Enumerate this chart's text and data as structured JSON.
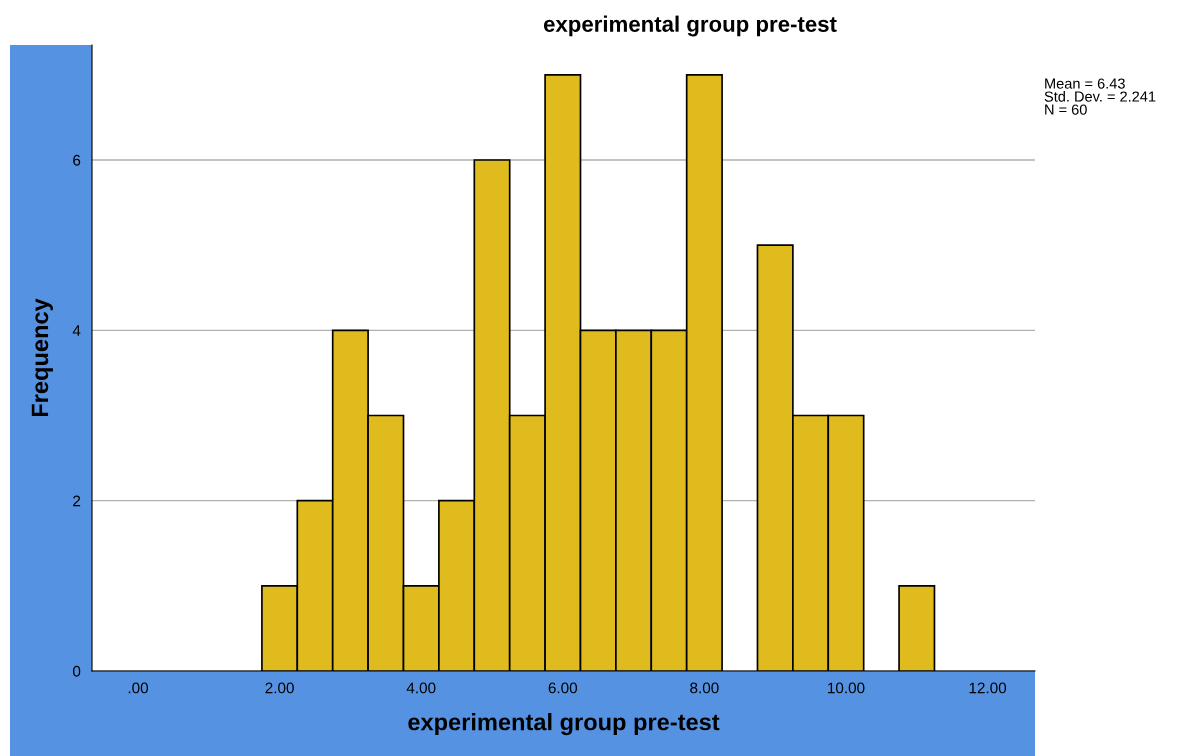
{
  "chart_data": {
    "type": "histogram",
    "title": "experimental group pre-test",
    "xlabel": "experimental group pre-test",
    "ylabel": "Frequency",
    "bins": [
      1.75,
      2.25,
      2.75,
      3.25,
      3.75,
      4.25,
      4.75,
      5.25,
      5.75,
      6.25,
      6.75,
      7.25,
      7.75,
      8.25,
      8.75,
      9.25,
      9.75,
      10.25,
      10.75,
      11.25
    ],
    "values": [
      1,
      2,
      4,
      3,
      1,
      2,
      6,
      3,
      7,
      4,
      4,
      4,
      7,
      0,
      5,
      3,
      3,
      0,
      1
    ],
    "color": "#e0bb1e",
    "xlim": [
      -0.65,
      12.67
    ],
    "ylim": [
      0,
      7.35
    ],
    "xticks": [
      {
        "value": 0,
        "label": ".00"
      },
      {
        "value": 2,
        "label": "2.00"
      },
      {
        "value": 4,
        "label": "4.00"
      },
      {
        "value": 6,
        "label": "6.00"
      },
      {
        "value": 8,
        "label": "8.00"
      },
      {
        "value": 10,
        "label": "10.00"
      },
      {
        "value": 12,
        "label": "12.00"
      }
    ],
    "yticks": [
      0,
      2,
      4,
      6
    ],
    "grid": "y",
    "annotations": [
      "Mean = 6.43",
      "Std. Dev. = 2.241",
      "N = 60"
    ]
  }
}
